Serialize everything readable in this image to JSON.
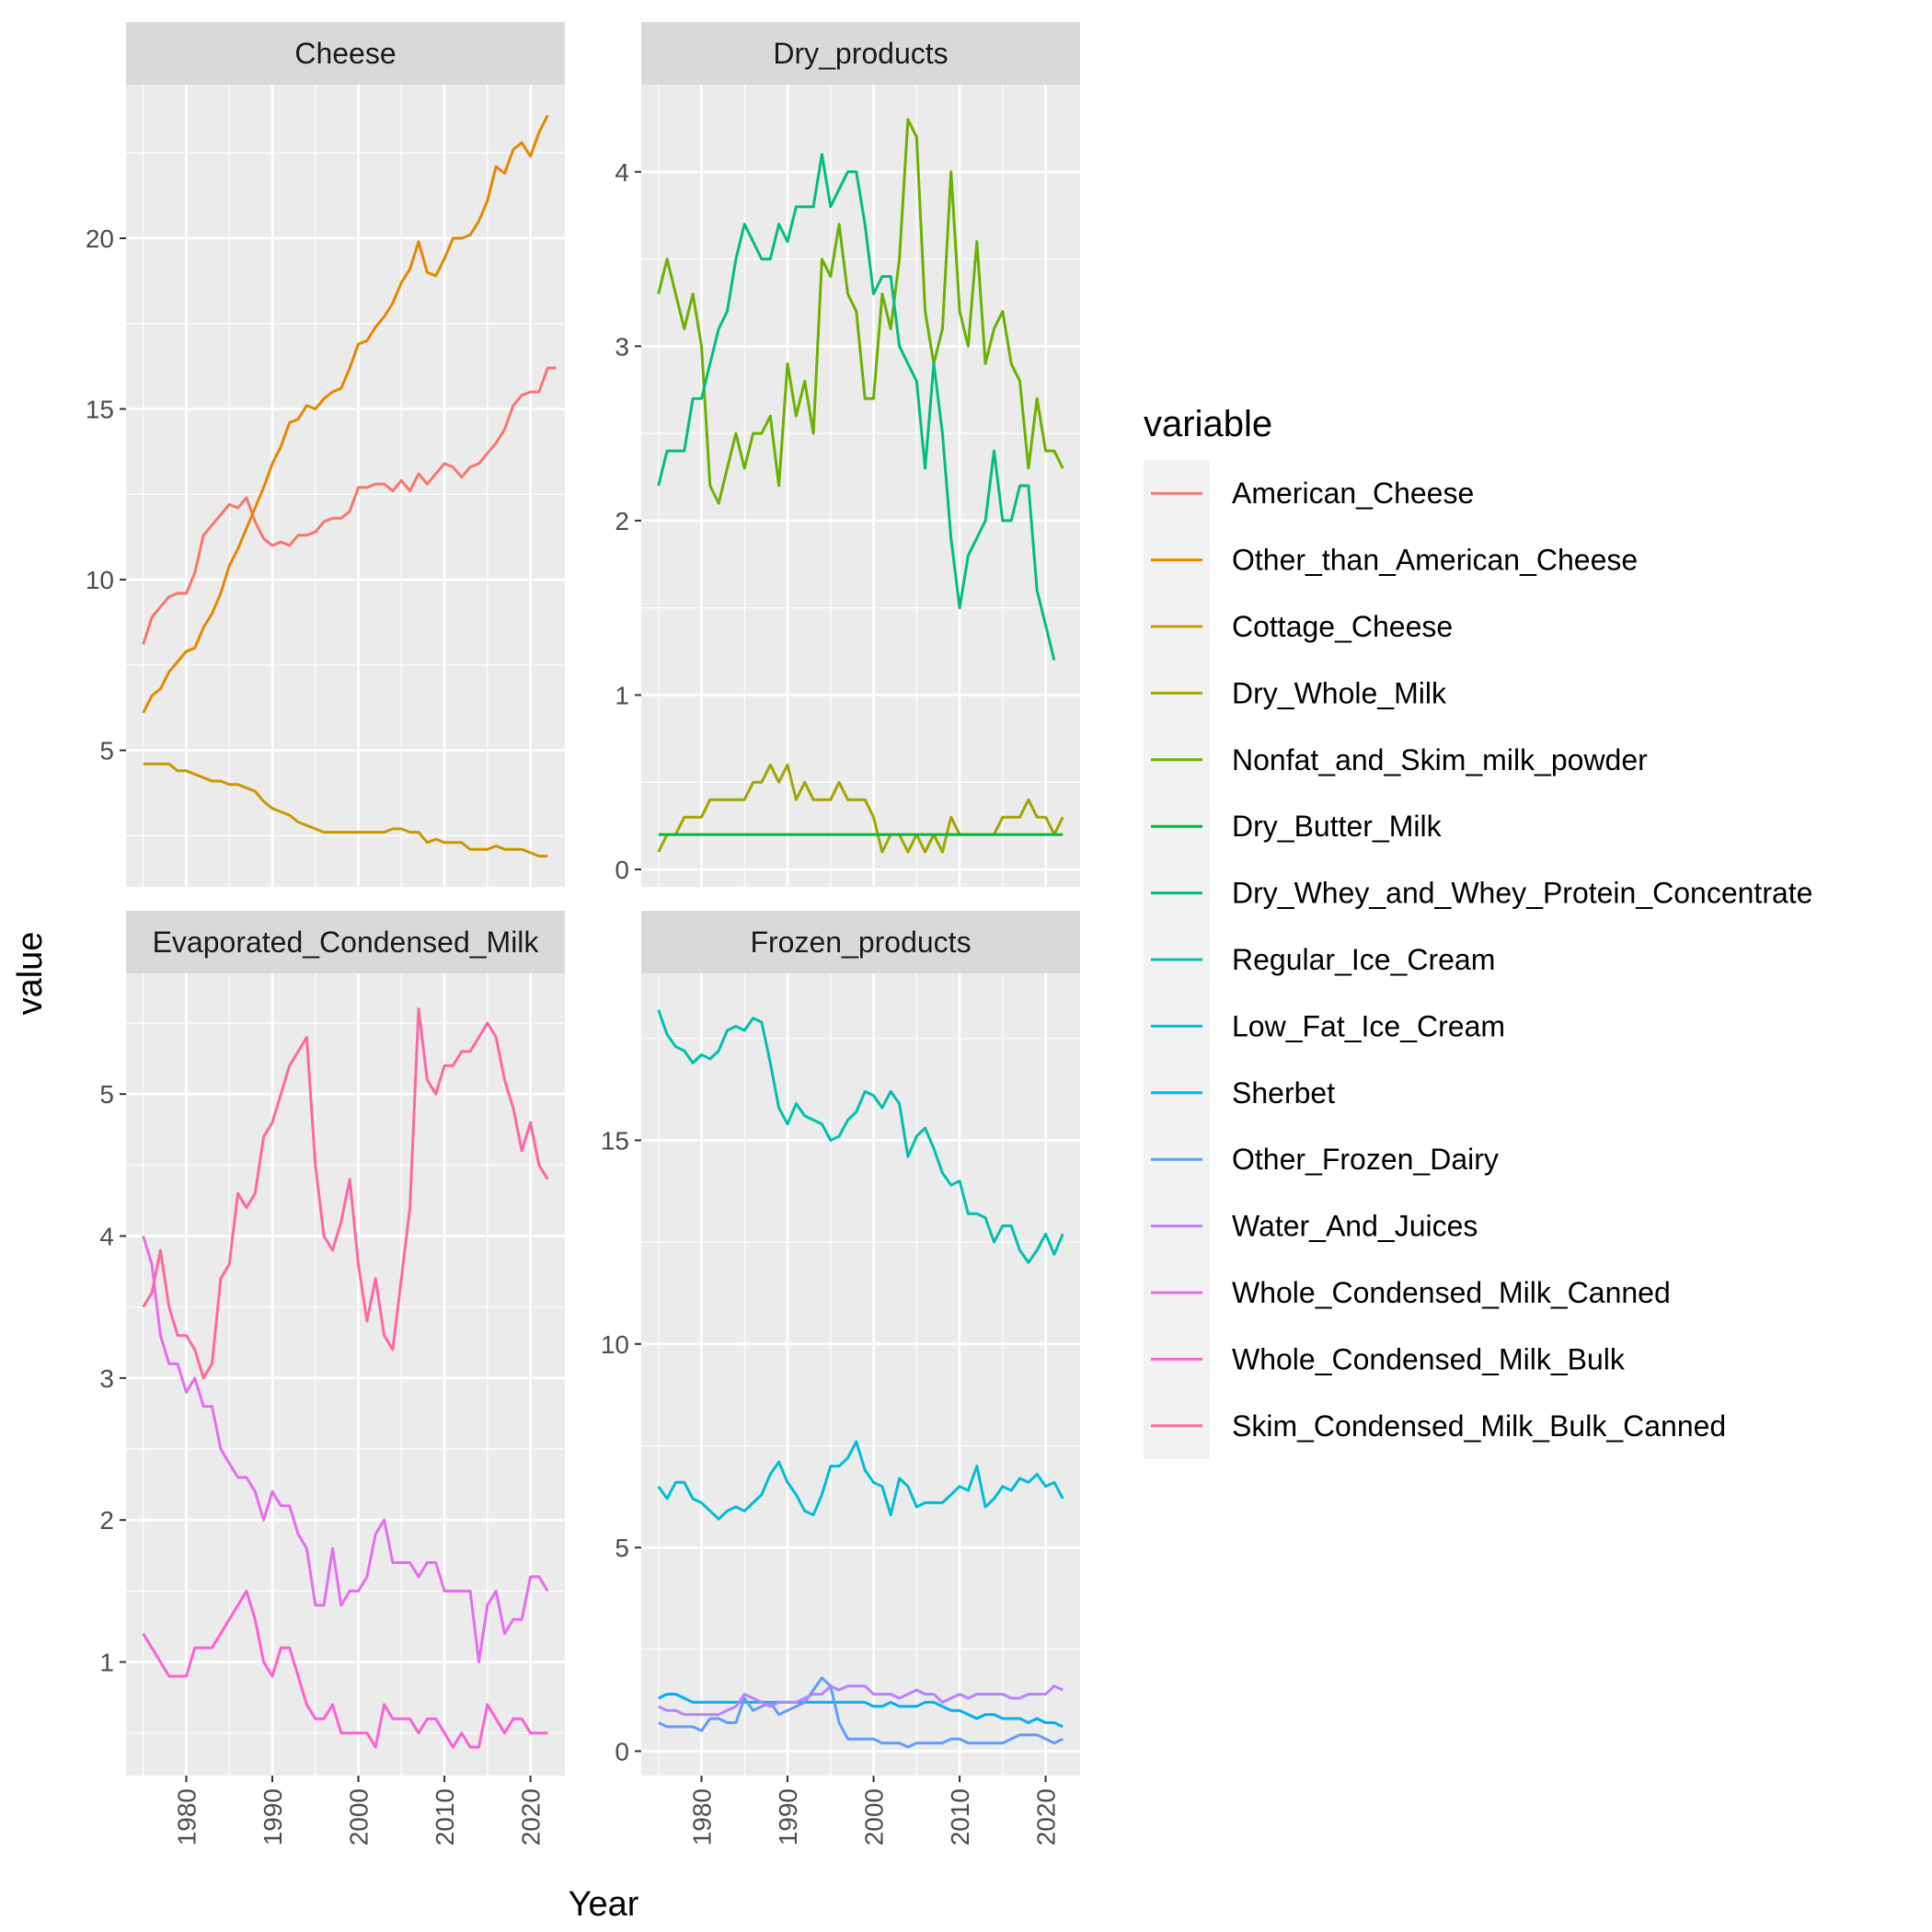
{
  "chart_data": {
    "type": "line",
    "xlabel": "Year",
    "ylabel": "value",
    "legend": {
      "title": "variable",
      "placement": "right"
    },
    "x_ticks": [
      1980,
      1990,
      2000,
      2010,
      2020
    ],
    "xlim": [
      1973,
      2024
    ],
    "series_colors": {
      "American_Cheese": "#F8766D",
      "Other_than_American_Cheese": "#E58700",
      "Cottage_Cheese": "#C99800",
      "Dry_Whole_Milk": "#A3A500",
      "Nonfat_and_Skim_milk_powder": "#6BB100",
      "Dry_Butter_Milk": "#00BA38",
      "Dry_Whey_and_Whey_Protein_Concentrate": "#00BF7D",
      "Regular_Ice_Cream": "#00C0AF",
      "Low_Fat_Ice_Cream": "#00BCD8",
      "Sherbet": "#00B0F6",
      "Other_Frozen_Dairy": "#619CFF",
      "Water_And_Juices": "#B983FF",
      "Whole_Condensed_Milk_Canned": "#E76BF3",
      "Whole_Condensed_Milk_Bulk": "#FD61D1",
      "Skim_Condensed_Milk_Bulk_Canned": "#FF67A4"
    },
    "legend_items": [
      "American_Cheese",
      "Other_than_American_Cheese",
      "Cottage_Cheese",
      "Dry_Whole_Milk",
      "Nonfat_and_Skim_milk_powder",
      "Dry_Butter_Milk",
      "Dry_Whey_and_Whey_Protein_Concentrate",
      "Regular_Ice_Cream",
      "Low_Fat_Ice_Cream",
      "Sherbet",
      "Other_Frozen_Dairy",
      "Water_And_Juices",
      "Whole_Condensed_Milk_Canned",
      "Whole_Condensed_Milk_Bulk",
      "Skim_Condensed_Milk_Bulk_Canned"
    ],
    "panels": [
      {
        "title": "Cheese",
        "y_ticks": [
          5,
          10,
          15,
          20
        ],
        "ylim": [
          1.0,
          24.5
        ],
        "series": [
          {
            "name": "American_Cheese",
            "x_start": 1975,
            "values": [
              8.1,
              8.9,
              9.2,
              9.5,
              9.6,
              9.6,
              10.2,
              11.3,
              11.6,
              11.9,
              12.2,
              12.1,
              12.4,
              11.7,
              11.2,
              11.0,
              11.1,
              11.0,
              11.3,
              11.3,
              11.4,
              11.7,
              11.8,
              11.8,
              12.0,
              12.7,
              12.7,
              12.8,
              12.8,
              12.6,
              12.9,
              12.6,
              13.1,
              12.8,
              13.1,
              13.4,
              13.3,
              13.0,
              13.3,
              13.4,
              13.7,
              14.0,
              14.4,
              15.1,
              15.4,
              15.5,
              15.5,
              16.2,
              16.2
            ]
          },
          {
            "name": "Other_than_American_Cheese",
            "x_start": 1975,
            "values": [
              6.1,
              6.6,
              6.8,
              7.3,
              7.6,
              7.9,
              8.0,
              8.6,
              9.0,
              9.6,
              10.4,
              10.9,
              11.5,
              12.1,
              12.7,
              13.4,
              13.9,
              14.6,
              14.7,
              15.1,
              15.0,
              15.3,
              15.5,
              15.6,
              16.2,
              16.9,
              17.0,
              17.4,
              17.7,
              18.1,
              18.7,
              19.1,
              19.9,
              19.0,
              18.9,
              19.4,
              20.0,
              20.0,
              20.1,
              20.5,
              21.1,
              22.1,
              21.9,
              22.6,
              22.8,
              22.4,
              23.1,
              23.6
            ]
          },
          {
            "name": "Cottage_Cheese",
            "x_start": 1975,
            "values": [
              4.6,
              4.6,
              4.6,
              4.6,
              4.4,
              4.4,
              4.3,
              4.2,
              4.1,
              4.1,
              4.0,
              4.0,
              3.9,
              3.8,
              3.5,
              3.3,
              3.2,
              3.1,
              2.9,
              2.8,
              2.7,
              2.6,
              2.6,
              2.6,
              2.6,
              2.6,
              2.6,
              2.6,
              2.6,
              2.7,
              2.7,
              2.6,
              2.6,
              2.3,
              2.4,
              2.3,
              2.3,
              2.3,
              2.1,
              2.1,
              2.1,
              2.2,
              2.1,
              2.1,
              2.1,
              2.0,
              1.9,
              1.9
            ]
          }
        ]
      },
      {
        "title": "Dry_products",
        "y_ticks": [
          0,
          1,
          2,
          3,
          4
        ],
        "ylim": [
          -0.1,
          4.5
        ],
        "series": [
          {
            "name": "Dry_Whole_Milk",
            "x_start": 1975,
            "values": [
              0.1,
              0.2,
              0.2,
              0.3,
              0.3,
              0.3,
              0.4,
              0.4,
              0.4,
              0.4,
              0.4,
              0.5,
              0.5,
              0.6,
              0.5,
              0.6,
              0.4,
              0.5,
              0.4,
              0.4,
              0.4,
              0.5,
              0.4,
              0.4,
              0.4,
              0.3,
              0.1,
              0.2,
              0.2,
              0.1,
              0.2,
              0.1,
              0.2,
              0.1,
              0.3,
              0.2,
              0.2,
              0.2,
              0.2,
              0.2,
              0.3,
              0.3,
              0.3,
              0.4,
              0.3,
              0.3,
              0.2,
              0.3
            ]
          },
          {
            "name": "Nonfat_and_Skim_milk_powder",
            "x_start": 1975,
            "values": [
              3.3,
              3.5,
              3.3,
              3.1,
              3.3,
              3.0,
              2.2,
              2.1,
              2.3,
              2.5,
              2.3,
              2.5,
              2.5,
              2.6,
              2.2,
              2.9,
              2.6,
              2.8,
              2.5,
              3.5,
              3.4,
              3.7,
              3.3,
              3.2,
              2.7,
              2.7,
              3.3,
              3.1,
              3.5,
              4.3,
              4.2,
              3.2,
              2.9,
              3.1,
              4.0,
              3.2,
              3.0,
              3.6,
              2.9,
              3.1,
              3.2,
              2.9,
              2.8,
              2.3,
              2.7,
              2.4,
              2.4,
              2.3
            ]
          },
          {
            "name": "Dry_Butter_Milk",
            "x_start": 1975,
            "values": [
              0.2,
              0.2,
              0.2,
              0.2,
              0.2,
              0.2,
              0.2,
              0.2,
              0.2,
              0.2,
              0.2,
              0.2,
              0.2,
              0.2,
              0.2,
              0.2,
              0.2,
              0.2,
              0.2,
              0.2,
              0.2,
              0.2,
              0.2,
              0.2,
              0.2,
              0.2,
              0.2,
              0.2,
              0.2,
              0.2,
              0.2,
              0.2,
              0.2,
              0.2,
              0.2,
              0.2,
              0.2,
              0.2,
              0.2,
              0.2,
              0.2,
              0.2,
              0.2,
              0.2,
              0.2,
              0.2,
              0.2,
              0.2
            ]
          },
          {
            "name": "Dry_Whey_and_Whey_Protein_Concentrate",
            "x_start": 1975,
            "values": [
              2.2,
              2.4,
              2.4,
              2.4,
              2.7,
              2.7,
              2.9,
              3.1,
              3.2,
              3.5,
              3.7,
              3.6,
              3.5,
              3.5,
              3.7,
              3.6,
              3.8,
              3.8,
              3.8,
              4.1,
              3.8,
              3.9,
              4.0,
              4.0,
              3.7,
              3.3,
              3.4,
              3.4,
              3.0,
              2.9,
              2.8,
              2.3,
              2.9,
              2.5,
              1.9,
              1.5,
              1.8,
              1.9,
              2.0,
              2.4,
              2.0,
              2.0,
              2.2,
              2.2,
              1.6,
              1.4,
              1.2
            ]
          }
        ]
      },
      {
        "title": "Evaporated_Condensed_Milk",
        "y_ticks": [
          1,
          2,
          3,
          4,
          5
        ],
        "ylim": [
          0.2,
          5.85
        ],
        "series": [
          {
            "name": "Whole_Condensed_Milk_Canned",
            "x_start": 1975,
            "values": [
              4.0,
              3.8,
              3.3,
              3.1,
              3.1,
              2.9,
              3.0,
              2.8,
              2.8,
              2.5,
              2.4,
              2.3,
              2.3,
              2.2,
              2.0,
              2.2,
              2.1,
              2.1,
              1.9,
              1.8,
              1.4,
              1.4,
              1.8,
              1.4,
              1.5,
              1.5,
              1.6,
              1.9,
              2.0,
              1.7,
              1.7,
              1.7,
              1.6,
              1.7,
              1.7,
              1.5,
              1.5,
              1.5,
              1.5,
              1.0,
              1.4,
              1.5,
              1.2,
              1.3,
              1.3,
              1.6,
              1.6,
              1.5
            ]
          },
          {
            "name": "Whole_Condensed_Milk_Bulk",
            "x_start": 1975,
            "values": [
              1.2,
              1.1,
              1.0,
              0.9,
              0.9,
              0.9,
              1.1,
              1.1,
              1.1,
              1.2,
              1.3,
              1.4,
              1.5,
              1.3,
              1.0,
              0.9,
              1.1,
              1.1,
              0.9,
              0.7,
              0.6,
              0.6,
              0.7,
              0.5,
              0.5,
              0.5,
              0.5,
              0.4,
              0.7,
              0.6,
              0.6,
              0.6,
              0.5,
              0.6,
              0.6,
              0.5,
              0.4,
              0.5,
              0.4,
              0.4,
              0.7,
              0.6,
              0.5,
              0.6,
              0.6,
              0.5,
              0.5,
              0.5
            ]
          },
          {
            "name": "Skim_Condensed_Milk_Bulk_Canned",
            "x_start": 1975,
            "values": [
              3.5,
              3.6,
              3.9,
              3.5,
              3.3,
              3.3,
              3.2,
              3.0,
              3.1,
              3.7,
              3.8,
              4.3,
              4.2,
              4.3,
              4.7,
              4.8,
              5.0,
              5.2,
              5.3,
              5.4,
              4.5,
              4.0,
              3.9,
              4.1,
              4.4,
              3.8,
              3.4,
              3.7,
              3.3,
              3.2,
              3.7,
              4.2,
              5.6,
              5.1,
              5.0,
              5.2,
              5.2,
              5.3,
              5.3,
              5.4,
              5.5,
              5.4,
              5.1,
              4.9,
              4.6,
              4.8,
              4.5,
              4.4
            ]
          }
        ]
      },
      {
        "title": "Frozen_products",
        "y_ticks": [
          0,
          5,
          10,
          15
        ],
        "ylim": [
          -0.6,
          19.1
        ],
        "series": [
          {
            "name": "Regular_Ice_Cream",
            "x_start": 1975,
            "values": [
              18.2,
              17.6,
              17.3,
              17.2,
              16.9,
              17.1,
              17.0,
              17.2,
              17.7,
              17.8,
              17.7,
              18.0,
              17.9,
              16.9,
              15.8,
              15.4,
              15.9,
              15.6,
              15.5,
              15.4,
              15.0,
              15.1,
              15.5,
              15.7,
              16.2,
              16.1,
              15.8,
              16.2,
              15.9,
              14.6,
              15.1,
              15.3,
              14.8,
              14.2,
              13.9,
              14.0,
              13.2,
              13.2,
              13.1,
              12.5,
              12.9,
              12.9,
              12.3,
              12.0,
              12.3,
              12.7,
              12.2,
              12.7
            ]
          },
          {
            "name": "Low_Fat_Ice_Cream",
            "x_start": 1975,
            "values": [
              6.5,
              6.2,
              6.6,
              6.6,
              6.2,
              6.1,
              5.9,
              5.7,
              5.9,
              6.0,
              5.9,
              6.1,
              6.3,
              6.8,
              7.1,
              6.6,
              6.3,
              5.9,
              5.8,
              6.3,
              7.0,
              7.0,
              7.2,
              7.6,
              6.9,
              6.6,
              6.5,
              5.8,
              6.7,
              6.5,
              6.0,
              6.1,
              6.1,
              6.1,
              6.3,
              6.5,
              6.4,
              7.0,
              6.0,
              6.2,
              6.5,
              6.4,
              6.7,
              6.6,
              6.8,
              6.5,
              6.6,
              6.2
            ]
          },
          {
            "name": "Sherbet",
            "x_start": 1975,
            "values": [
              1.3,
              1.4,
              1.4,
              1.3,
              1.2,
              1.2,
              1.2,
              1.2,
              1.2,
              1.2,
              1.2,
              1.2,
              1.2,
              1.2,
              1.2,
              1.2,
              1.2,
              1.2,
              1.2,
              1.2,
              1.2,
              1.2,
              1.2,
              1.2,
              1.2,
              1.1,
              1.1,
              1.2,
              1.1,
              1.1,
              1.1,
              1.2,
              1.2,
              1.1,
              1.0,
              1.0,
              0.9,
              0.8,
              0.9,
              0.9,
              0.8,
              0.8,
              0.8,
              0.7,
              0.8,
              0.7,
              0.7,
              0.6
            ]
          },
          {
            "name": "Other_Frozen_Dairy",
            "x_start": 1975,
            "values": [
              0.7,
              0.6,
              0.6,
              0.6,
              0.6,
              0.5,
              0.8,
              0.8,
              0.7,
              0.7,
              1.3,
              1.0,
              1.1,
              1.2,
              0.9,
              1.0,
              1.1,
              1.2,
              1.5,
              1.8,
              1.6,
              0.7,
              0.3,
              0.3,
              0.3,
              0.3,
              0.2,
              0.2,
              0.2,
              0.1,
              0.2,
              0.2,
              0.2,
              0.2,
              0.3,
              0.3,
              0.2,
              0.2,
              0.2,
              0.2,
              0.2,
              0.3,
              0.4,
              0.4,
              0.4,
              0.3,
              0.2,
              0.3
            ]
          },
          {
            "name": "Water_And_Juices",
            "x_start": 1975,
            "values": [
              1.1,
              1.0,
              1.0,
              0.9,
              0.9,
              0.9,
              0.9,
              0.9,
              1.0,
              1.1,
              1.4,
              1.3,
              1.2,
              1.1,
              1.2,
              1.2,
              1.2,
              1.3,
              1.4,
              1.4,
              1.6,
              1.5,
              1.6,
              1.6,
              1.6,
              1.4,
              1.4,
              1.4,
              1.3,
              1.4,
              1.5,
              1.4,
              1.4,
              1.2,
              1.3,
              1.4,
              1.3,
              1.4,
              1.4,
              1.4,
              1.4,
              1.3,
              1.3,
              1.4,
              1.4,
              1.4,
              1.6,
              1.5
            ]
          }
        ]
      }
    ]
  }
}
